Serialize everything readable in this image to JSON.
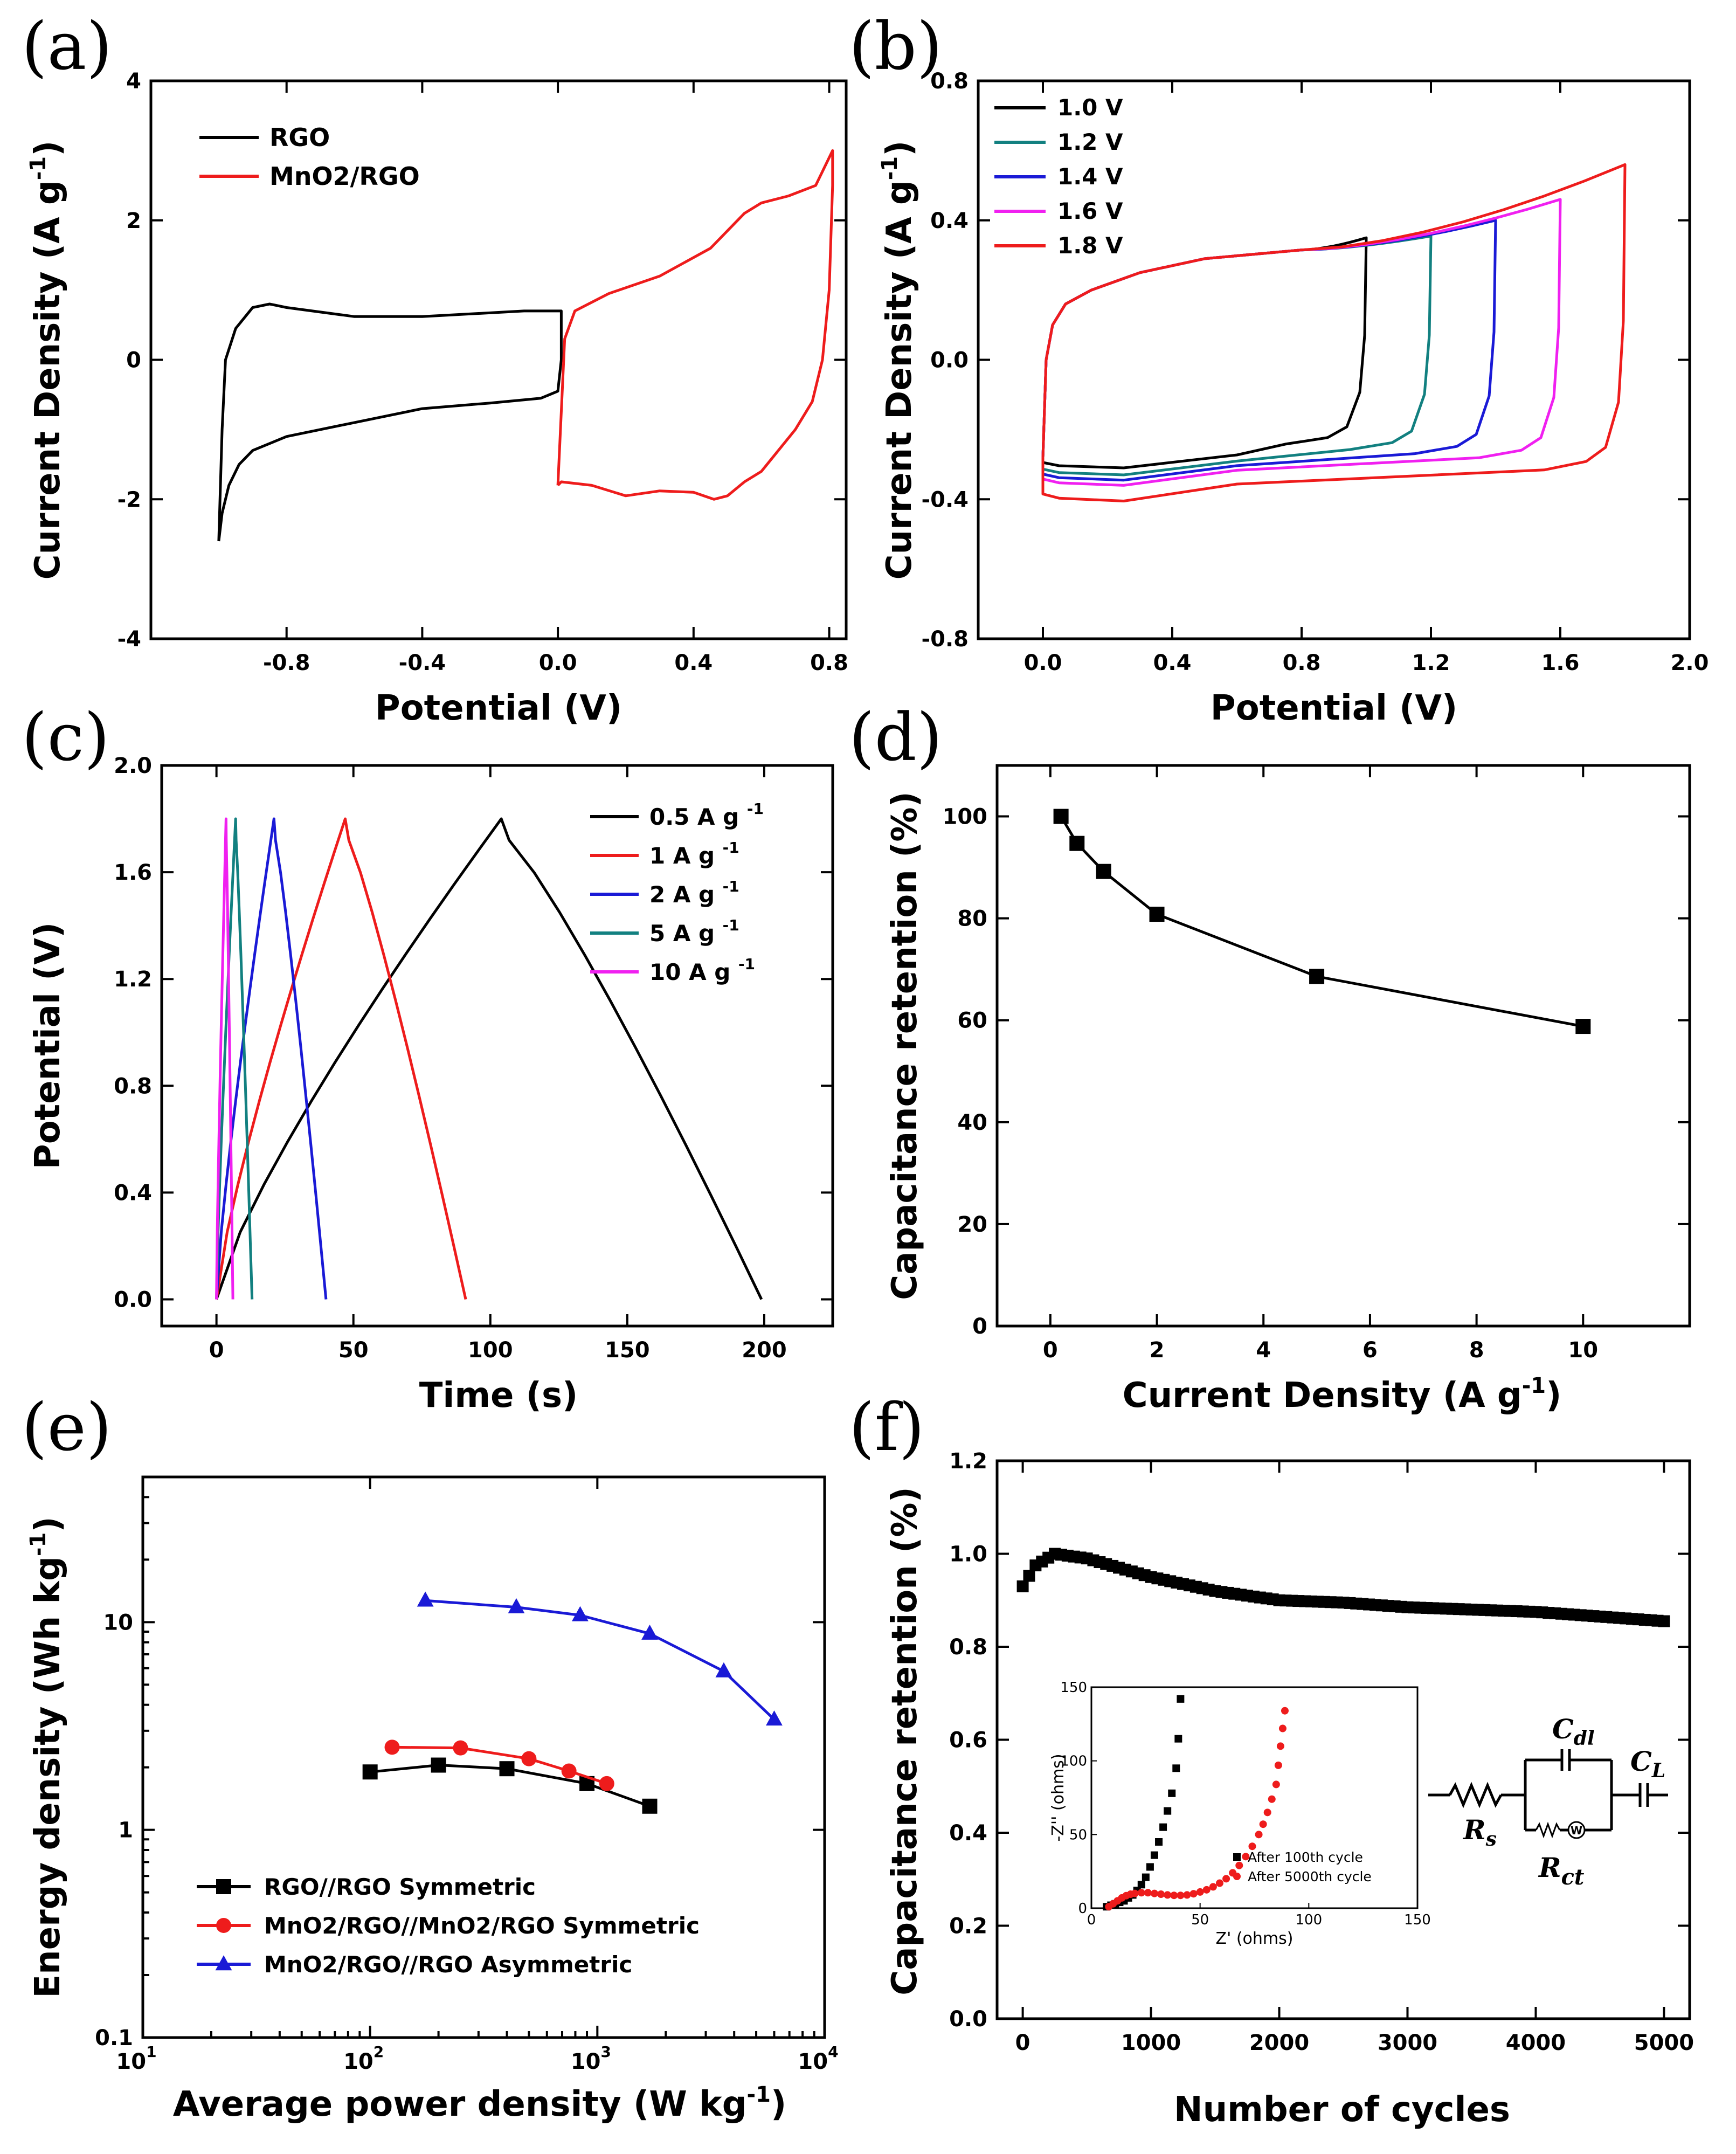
{
  "figure": {
    "colors": {
      "black": "#000000",
      "red": "#ee1c1c",
      "teal": "#128080",
      "blue": "#1a1ad6",
      "magenta": "#f020f0"
    }
  },
  "panels": {
    "a": {
      "label": "(a)",
      "chart_data": {
        "type": "line",
        "title": "",
        "xlabel": "Potential (V)",
        "ylabel": "Current Density (A g-1)",
        "xlim": [
          -1.2,
          0.85
        ],
        "ylim": [
          -4,
          4
        ],
        "xticks": [
          -0.8,
          -0.4,
          0.0,
          0.4,
          0.8
        ],
        "xtick_labels": [
          "-0.8",
          "-0.4",
          "0.0",
          "0.4",
          "0.8"
        ],
        "yticks": [
          -4,
          -2,
          0,
          2,
          4
        ],
        "ytick_labels": [
          "-4",
          "-2",
          "0",
          "2",
          "4"
        ],
        "legend": "top-left",
        "series": [
          {
            "name": "RGO",
            "color": "#000000",
            "closed": true,
            "points": [
              [
                -1.0,
                -2.6
              ],
              [
                -0.99,
                -2.2
              ],
              [
                -0.97,
                -1.8
              ],
              [
                -0.94,
                -1.5
              ],
              [
                -0.9,
                -1.3
              ],
              [
                -0.8,
                -1.1
              ],
              [
                -0.6,
                -0.9
              ],
              [
                -0.4,
                -0.7
              ],
              [
                -0.2,
                -0.62
              ],
              [
                -0.05,
                -0.55
              ],
              [
                0.0,
                -0.45
              ],
              [
                0.01,
                0.0
              ],
              [
                0.01,
                0.7
              ],
              [
                -0.1,
                0.7
              ],
              [
                -0.4,
                0.62
              ],
              [
                -0.6,
                0.62
              ],
              [
                -0.8,
                0.75
              ],
              [
                -0.85,
                0.8
              ],
              [
                -0.9,
                0.75
              ],
              [
                -0.95,
                0.45
              ],
              [
                -0.98,
                0.0
              ],
              [
                -0.99,
                -1.0
              ],
              [
                -1.0,
                -2.6
              ]
            ]
          },
          {
            "name": "MnO2/RGO",
            "color": "#ee1c1c",
            "closed": true,
            "points": [
              [
                0.0,
                -1.8
              ],
              [
                0.01,
                -1.75
              ],
              [
                0.1,
                -1.8
              ],
              [
                0.2,
                -1.95
              ],
              [
                0.3,
                -1.88
              ],
              [
                0.4,
                -1.9
              ],
              [
                0.46,
                -2.0
              ],
              [
                0.5,
                -1.95
              ],
              [
                0.55,
                -1.75
              ],
              [
                0.6,
                -1.6
              ],
              [
                0.7,
                -1.0
              ],
              [
                0.75,
                -0.6
              ],
              [
                0.78,
                0.0
              ],
              [
                0.8,
                1.0
              ],
              [
                0.81,
                2.5
              ],
              [
                0.81,
                3.0
              ],
              [
                0.76,
                2.5
              ],
              [
                0.68,
                2.35
              ],
              [
                0.6,
                2.25
              ],
              [
                0.55,
                2.1
              ],
              [
                0.45,
                1.6
              ],
              [
                0.3,
                1.2
              ],
              [
                0.15,
                0.95
              ],
              [
                0.05,
                0.7
              ],
              [
                0.02,
                0.3
              ],
              [
                0.0,
                -1.8
              ]
            ]
          }
        ]
      }
    },
    "b": {
      "label": "(b)",
      "chart_data": {
        "type": "line",
        "title": "",
        "xlabel": "Potential (V)",
        "ylabel": "Current Density (A g-1)",
        "xlim": [
          -0.2,
          2.0
        ],
        "ylim": [
          -0.8,
          0.8
        ],
        "xticks": [
          0.0,
          0.4,
          0.8,
          1.2,
          1.6,
          2.0
        ],
        "xtick_labels": [
          "0.0",
          "0.4",
          "0.8",
          "1.2",
          "1.6",
          "2.0"
        ],
        "yticks": [
          -0.8,
          -0.4,
          0.0,
          0.4,
          0.8
        ],
        "ytick_labels": [
          "-0.8",
          "-0.4",
          "0.0",
          "0.4",
          "0.8"
        ],
        "legend": "top-left",
        "series": [
          {
            "name": "1.0 V",
            "color": "#000000",
            "vmax": 1.0,
            "imax": 0.35,
            "imin": -0.31
          },
          {
            "name": "1.2 V",
            "color": "#128080",
            "vmax": 1.2,
            "imax": 0.355,
            "imin": -0.33
          },
          {
            "name": "1.4 V",
            "color": "#1a1ad6",
            "vmax": 1.4,
            "imax": 0.4,
            "imin": -0.345
          },
          {
            "name": "1.6 V",
            "color": "#f020f0",
            "vmax": 1.6,
            "imax": 0.46,
            "imin": -0.36
          },
          {
            "name": "1.8 V",
            "color": "#ee1c1c",
            "vmax": 1.8,
            "imax": 0.56,
            "imin": -0.405
          }
        ]
      }
    },
    "c": {
      "label": "(c)",
      "chart_data": {
        "type": "line",
        "title": "",
        "xlabel": "Time (s)",
        "ylabel": "Potential (V)",
        "xlim": [
          -20,
          225
        ],
        "ylim": [
          -0.1,
          2.0
        ],
        "xticks": [
          0,
          50,
          100,
          150,
          200
        ],
        "xtick_labels": [
          "0",
          "50",
          "100",
          "150",
          "200"
        ],
        "yticks": [
          0.0,
          0.4,
          0.8,
          1.2,
          1.6,
          2.0
        ],
        "ytick_labels": [
          "0.0",
          "0.4",
          "0.8",
          "1.2",
          "1.6",
          "2.0"
        ],
        "legend": "top-right",
        "series": [
          {
            "name": "0.5 A g",
            "sup": "-1",
            "color": "#000000",
            "t_charge": 104,
            "t_end": 199
          },
          {
            "name": "1 A g",
            "sup": "-1",
            "color": "#ee1c1c",
            "t_charge": 47,
            "t_end": 91
          },
          {
            "name": "2 A g",
            "sup": "-1",
            "color": "#1a1ad6",
            "t_charge": 21,
            "t_end": 40
          },
          {
            "name": "5 A g",
            "sup": "-1",
            "color": "#128080",
            "t_charge": 7,
            "t_end": 13
          },
          {
            "name": "10 A g",
            "sup": "-1",
            "color": "#f020f0",
            "t_charge": 3.5,
            "t_end": 6
          }
        ]
      }
    },
    "d": {
      "label": "(d)",
      "chart_data": {
        "type": "line",
        "title": "",
        "xlabel": "Current Density (A g-1)",
        "ylabel": "Capacitance retention (%)",
        "xlim": [
          -1,
          12
        ],
        "ylim": [
          0,
          110
        ],
        "xticks": [
          0,
          2,
          4,
          6,
          8,
          10
        ],
        "xtick_labels": [
          "0",
          "2",
          "4",
          "6",
          "8",
          "10"
        ],
        "yticks": [
          0,
          20,
          40,
          60,
          80,
          100
        ],
        "ytick_labels": [
          "0",
          "20",
          "40",
          "60",
          "80",
          "100"
        ],
        "x": [
          0.2,
          0.5,
          1,
          2,
          5,
          10
        ],
        "values": [
          100,
          94.7,
          89.2,
          80.8,
          68.6,
          58.8
        ]
      }
    },
    "e": {
      "label": "(e)",
      "chart_data": {
        "type": "line",
        "title": "",
        "xlabel": "Average power density (W kg-1)",
        "ylabel": "Energy density (Wh kg-1)",
        "xscale": "log",
        "yscale": "log",
        "xlim": [
          10,
          10000
        ],
        "ylim": [
          0.1,
          50
        ],
        "xticks": [
          10,
          100,
          1000,
          10000
        ],
        "xtick_labels": [
          [
            "10",
            "1"
          ],
          [
            "10",
            "2"
          ],
          [
            "10",
            "3"
          ],
          [
            "10",
            "4"
          ]
        ],
        "yticks": [
          0.1,
          1,
          10
        ],
        "ytick_labels": [
          "0.1",
          "1",
          "10"
        ],
        "legend": "bottom-left",
        "series": [
          {
            "name": "RGO//RGO Symmetric",
            "color": "#000000",
            "marker": "square",
            "x": [
              100,
              200,
              400,
              900,
              1700
            ],
            "y": [
              1.9,
              2.05,
              1.97,
              1.67,
              1.3
            ]
          },
          {
            "name": "MnO2/RGO//MnO2/RGO Symmetric",
            "color": "#ee1c1c",
            "marker": "circle",
            "x": [
              125,
              250,
              500,
              750,
              1100
            ],
            "y": [
              2.5,
              2.48,
              2.2,
              1.92,
              1.67
            ]
          },
          {
            "name": "MnO2/RGO//RGO Asymmetric",
            "color": "#1a1ad6",
            "marker": "triangle",
            "x": [
              175,
              440,
              840,
              1700,
              3600,
              6000
            ],
            "y": [
              12.7,
              11.8,
              10.8,
              8.8,
              5.8,
              3.4
            ]
          }
        ]
      }
    },
    "f": {
      "label": "(f)",
      "chart_data": {
        "type": "scatter",
        "title": "",
        "xlabel": "Number of cycles",
        "ylabel": "Capacitance retention (%)",
        "xlim": [
          -200,
          5200
        ],
        "ylim": [
          0.0,
          1.2
        ],
        "xticks": [
          0,
          1000,
          2000,
          3000,
          4000,
          5000
        ],
        "xtick_labels": [
          "0",
          "1000",
          "2000",
          "3000",
          "4000",
          "5000"
        ],
        "yticks": [
          0.0,
          0.2,
          0.4,
          0.6,
          0.8,
          1.0,
          1.2
        ],
        "ytick_labels": [
          "0.0",
          "0.2",
          "0.4",
          "0.6",
          "0.8",
          "1.0",
          "1.2"
        ],
        "curve": [
          [
            0,
            0.93
          ],
          [
            100,
            0.975
          ],
          [
            250,
            1.0
          ],
          [
            500,
            0.99
          ],
          [
            1000,
            0.95
          ],
          [
            1500,
            0.92
          ],
          [
            2000,
            0.9
          ],
          [
            2500,
            0.895
          ],
          [
            3000,
            0.885
          ],
          [
            3500,
            0.88
          ],
          [
            4000,
            0.875
          ],
          [
            4500,
            0.865
          ],
          [
            5000,
            0.855
          ]
        ],
        "inset": {
          "xlabel": "Z' (ohms)",
          "ylabel": "-Z'' (ohms)",
          "xlim": [
            0,
            150
          ],
          "ylim": [
            0,
            150
          ],
          "xticks": [
            0,
            50,
            100,
            150
          ],
          "yticks": [
            0,
            50,
            100,
            150
          ],
          "legend": "bottom-right",
          "series": [
            {
              "name": "After 100th cycle",
              "color": "#000000",
              "marker": "square",
              "points": [
                [
                  7,
                  1
                ],
                [
                  9,
                  2
                ],
                [
                  11,
                  3
                ],
                [
                  13,
                  4
                ],
                [
                  15,
                  5
                ],
                [
                  17,
                  7
                ],
                [
                  19,
                  9
                ],
                [
                  21,
                  12
                ],
                [
                  23,
                  16
                ],
                [
                  25,
                  21
                ],
                [
                  27,
                  28
                ],
                [
                  29,
                  36
                ],
                [
                  31,
                  45
                ],
                [
                  33,
                  55
                ],
                [
                  35,
                  66
                ],
                [
                  37,
                  78
                ],
                [
                  39,
                  95
                ],
                [
                  40,
                  115
                ],
                [
                  41,
                  142
                ]
              ]
            },
            {
              "name": "After 5000th cycle",
              "color": "#ee1c1c",
              "marker": "circle",
              "points": [
                [
                  8,
                  1
                ],
                [
                  10,
                  3
                ],
                [
                  12,
                  5
                ],
                [
                  14,
                  7
                ],
                [
                  16,
                  8.5
                ],
                [
                  18,
                  9.5
                ],
                [
                  20,
                  10
                ],
                [
                  23,
                  10.5
                ],
                [
                  26,
                  10.5
                ],
                [
                  29,
                  10
                ],
                [
                  32,
                  9.5
                ],
                [
                  35,
                  9
                ],
                [
                  38,
                  8.7
                ],
                [
                  41,
                  8.7
                ],
                [
                  44,
                  9
                ],
                [
                  47,
                  9.8
                ],
                [
                  50,
                  11
                ],
                [
                  53,
                  12.5
                ],
                [
                  56,
                  14.5
                ],
                [
                  59,
                  17
                ],
                [
                  62,
                  20
                ],
                [
                  65,
                  24
                ],
                [
                  68,
                  29
                ],
                [
                  71,
                  35
                ],
                [
                  74,
                  42
                ],
                [
                  77,
                  50
                ],
                [
                  79,
                  57
                ],
                [
                  81,
                  65
                ],
                [
                  83,
                  74
                ],
                [
                  85,
                  84
                ],
                [
                  86,
                  97
                ],
                [
                  87,
                  110
                ],
                [
                  88,
                  122
                ],
                [
                  89,
                  134
                ]
              ]
            }
          ]
        },
        "circuit": {
          "labels": [
            "C",
            "dl",
            "C",
            "L",
            "R",
            "s",
            "R",
            "ct"
          ],
          "element": "W"
        }
      }
    }
  }
}
